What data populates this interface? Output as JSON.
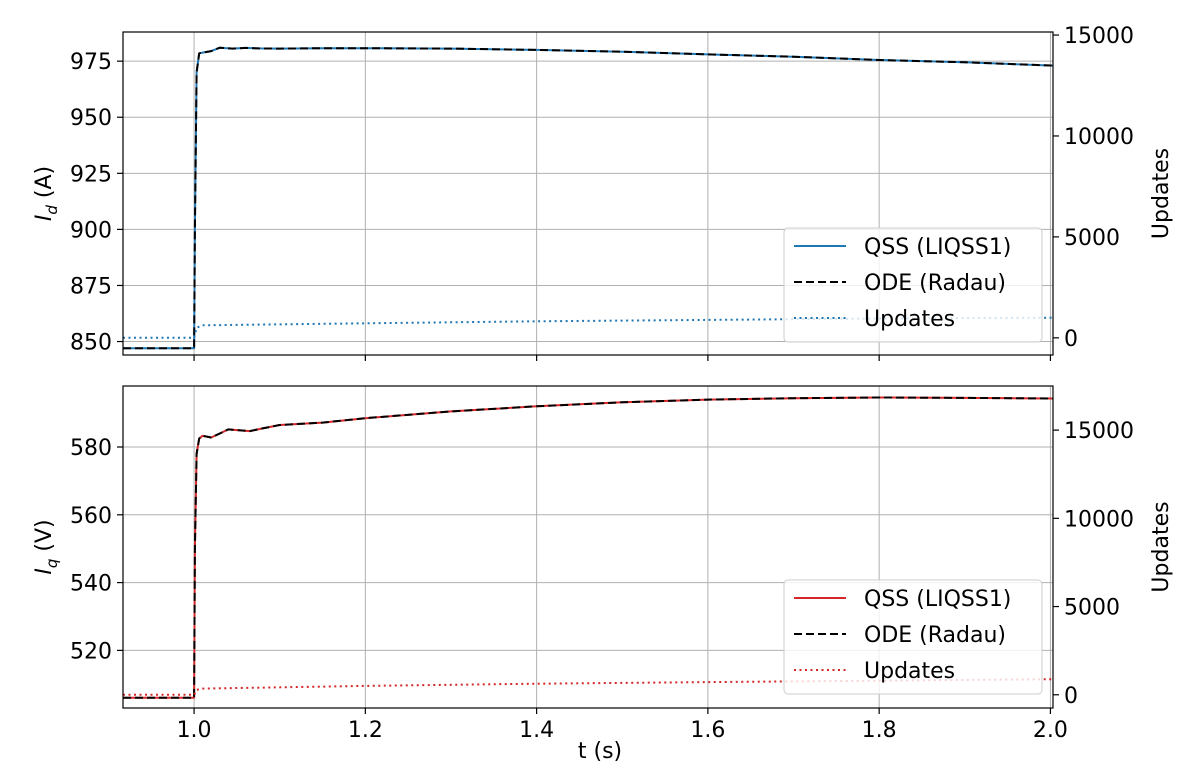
{
  "chart_data": [
    {
      "type": "line",
      "ylabel_symbol": "I",
      "ylabel_subscript": "d",
      "ylabel_unit": " (A)",
      "y2label": "Updates",
      "xlim": [
        0.917,
        2.003
      ],
      "ylim": [
        844,
        988
      ],
      "y2lim": [
        -850,
        15150
      ],
      "yticks": [
        850,
        875,
        900,
        925,
        950,
        975
      ],
      "y2ticks": [
        0,
        5000,
        10000,
        15000
      ],
      "xticks": [
        1.0,
        1.2,
        1.4,
        1.6,
        1.8,
        2.0
      ],
      "grid": true,
      "legend_position": "lower-right",
      "series": [
        {
          "name": "QSS (LIQSS1)",
          "axis": "left",
          "style": "solid",
          "color": "#1f77b4",
          "x": [
            0.917,
            1.0,
            1.001,
            1.003,
            1.006,
            1.01,
            1.02,
            1.03,
            1.045,
            1.06,
            1.075,
            1.1,
            1.15,
            1.2,
            1.3,
            1.4,
            1.5,
            1.6,
            1.7,
            1.8,
            1.9,
            2.003
          ],
          "y": [
            847,
            847,
            900,
            970,
            978.5,
            978.8,
            979.5,
            981.0,
            980.6,
            980.9,
            980.7,
            980.6,
            980.8,
            980.8,
            980.6,
            980.0,
            979.2,
            978.0,
            977.0,
            975.5,
            974.5,
            973.0
          ]
        },
        {
          "name": "ODE (Radau)",
          "axis": "left",
          "style": "dashed",
          "color": "#000000",
          "x": [
            0.917,
            1.0,
            1.001,
            1.003,
            1.006,
            1.01,
            1.02,
            1.03,
            1.045,
            1.06,
            1.075,
            1.1,
            1.15,
            1.2,
            1.3,
            1.4,
            1.5,
            1.6,
            1.7,
            1.8,
            1.9,
            2.003
          ],
          "y": [
            847,
            847,
            900,
            970,
            978.5,
            978.8,
            979.5,
            981.0,
            980.6,
            980.9,
            980.7,
            980.6,
            980.8,
            980.8,
            980.6,
            980.0,
            979.2,
            978.0,
            977.0,
            975.5,
            974.5,
            973.0
          ]
        },
        {
          "name": "Updates",
          "axis": "right",
          "style": "dotted",
          "color": "#1f77b4",
          "x": [
            0.917,
            1.0,
            1.003,
            1.01,
            1.2,
            1.4,
            1.6,
            1.8,
            2.003
          ],
          "y": [
            0,
            0,
            500,
            620,
            720,
            820,
            890,
            960,
            1000
          ]
        }
      ]
    },
    {
      "type": "line",
      "ylabel_symbol": "I",
      "ylabel_subscript": "q",
      "ylabel_unit": " (V)",
      "y2label": "Updates",
      "xlabel": "t (s)",
      "xlim": [
        0.917,
        2.003
      ],
      "ylim": [
        503,
        598
      ],
      "y2lim": [
        -750,
        17500
      ],
      "yticks": [
        520,
        540,
        560,
        580
      ],
      "y2ticks": [
        0,
        5000,
        10000,
        15000
      ],
      "xticks": [
        1.0,
        1.2,
        1.4,
        1.6,
        1.8,
        2.0
      ],
      "xticklabels": [
        "1.0",
        "1.2",
        "1.4",
        "1.6",
        "1.8",
        "2.0"
      ],
      "grid": true,
      "legend_position": "lower-right",
      "series": [
        {
          "name": "QSS (LIQSS1)",
          "axis": "left",
          "style": "solid",
          "color": "#d62728",
          "x": [
            0.917,
            1.0,
            1.001,
            1.003,
            1.006,
            1.01,
            1.02,
            1.03,
            1.04,
            1.05,
            1.065,
            1.08,
            1.1,
            1.15,
            1.2,
            1.3,
            1.4,
            1.5,
            1.6,
            1.7,
            1.8,
            1.9,
            2.003
          ],
          "y": [
            506,
            506,
            550,
            578,
            582.5,
            583.3,
            582.8,
            584.0,
            585.2,
            585.0,
            584.7,
            585.5,
            586.5,
            587.2,
            588.5,
            590.5,
            592.0,
            593.2,
            594.0,
            594.4,
            594.6,
            594.5,
            594.3
          ]
        },
        {
          "name": "ODE (Radau)",
          "axis": "left",
          "style": "dashed",
          "color": "#000000",
          "x": [
            0.917,
            1.0,
            1.001,
            1.003,
            1.006,
            1.01,
            1.02,
            1.03,
            1.04,
            1.05,
            1.065,
            1.08,
            1.1,
            1.15,
            1.2,
            1.3,
            1.4,
            1.5,
            1.6,
            1.7,
            1.8,
            1.9,
            2.003
          ],
          "y": [
            506,
            506,
            550,
            578,
            582.5,
            583.3,
            582.8,
            584.0,
            585.2,
            585.0,
            584.7,
            585.5,
            586.5,
            587.2,
            588.5,
            590.5,
            592.0,
            593.2,
            594.0,
            594.4,
            594.6,
            594.5,
            594.3
          ]
        },
        {
          "name": "Updates",
          "axis": "right",
          "style": "dotted",
          "color": "#d62728",
          "x": [
            0.917,
            1.0,
            1.003,
            1.01,
            1.2,
            1.4,
            1.6,
            1.8,
            2.003
          ],
          "y": [
            0,
            0,
            280,
            350,
            500,
            630,
            720,
            800,
            880
          ]
        }
      ]
    }
  ]
}
